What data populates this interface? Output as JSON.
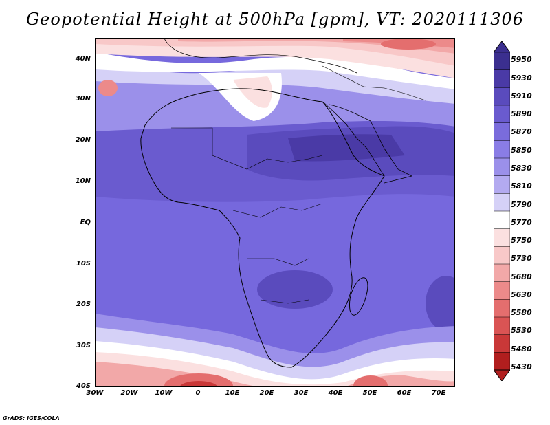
{
  "title": "Geopotential Height at 500hPa [gpm], VT: 2020111306",
  "lat_labels": [
    "40N",
    "30N",
    "20N",
    "10N",
    "EQ",
    "10S",
    "20S",
    "30S",
    "40S"
  ],
  "lon_labels": [
    "30W",
    "20W",
    "10W",
    "0",
    "10E",
    "20E",
    "30E",
    "40E",
    "50E",
    "60E",
    "70E"
  ],
  "colorbar": {
    "levels": [
      "5950",
      "5930",
      "5910",
      "5890",
      "5870",
      "5850",
      "5830",
      "5810",
      "5790",
      "5770",
      "5750",
      "5730",
      "5680",
      "5630",
      "5580",
      "5530",
      "5480",
      "5430"
    ],
    "colors": [
      "#3b2f8f",
      "#4a3aa6",
      "#5a4bbd",
      "#6a5bcf",
      "#7a6cdc",
      "#8a7de6",
      "#9b90ea",
      "#b3aaf0",
      "#d5d1f7",
      "#ffffff",
      "#fbe0e0",
      "#f8c8c8",
      "#f2a8a8",
      "#ec8a8a",
      "#e46e6e",
      "#da5454",
      "#c93838",
      "#b11e1e"
    ]
  },
  "credit": "GrADS: IGES/COLA",
  "colors": {
    "base_blue": "#7668dd",
    "deep_blue": "#5448c4",
    "band_white": "#ffffff",
    "warm_red": "#e46e6e",
    "deep_red": "#b11e1e"
  }
}
